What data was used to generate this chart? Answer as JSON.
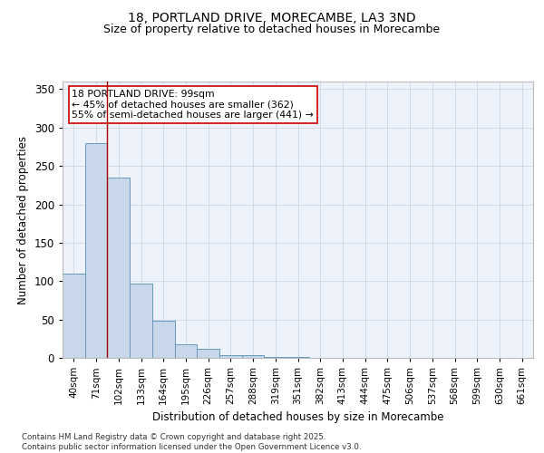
{
  "title1": "18, PORTLAND DRIVE, MORECAMBE, LA3 3ND",
  "title2": "Size of property relative to detached houses in Morecambe",
  "xlabel": "Distribution of detached houses by size in Morecambe",
  "ylabel": "Number of detached properties",
  "bin_labels": [
    "40sqm",
    "71sqm",
    "102sqm",
    "133sqm",
    "164sqm",
    "195sqm",
    "226sqm",
    "257sqm",
    "288sqm",
    "319sqm",
    "351sqm",
    "382sqm",
    "413sqm",
    "444sqm",
    "475sqm",
    "506sqm",
    "537sqm",
    "568sqm",
    "599sqm",
    "630sqm",
    "661sqm"
  ],
  "bar_heights": [
    110,
    280,
    235,
    97,
    48,
    18,
    12,
    3,
    3,
    1,
    1,
    0,
    0,
    0,
    0,
    0,
    0,
    0,
    0,
    0,
    0
  ],
  "bar_color": "#c8d8ea",
  "bar_edge_color": "#6699bb",
  "red_line_x": 1.5,
  "annotation_title": "18 PORTLAND DRIVE: 99sqm",
  "annotation_line1": "← 45% of detached houses are smaller (362)",
  "annotation_line2": "55% of semi-detached houses are larger (441) →",
  "bg_color": "#eef2fb",
  "grid_color": "#ccd5e8",
  "footer1": "Contains HM Land Registry data © Crown copyright and database right 2025.",
  "footer2": "Contains public sector information licensed under the Open Government Licence v3.0.",
  "ylim": [
    0,
    360
  ],
  "yticks": [
    0,
    50,
    100,
    150,
    200,
    250,
    300,
    350
  ]
}
